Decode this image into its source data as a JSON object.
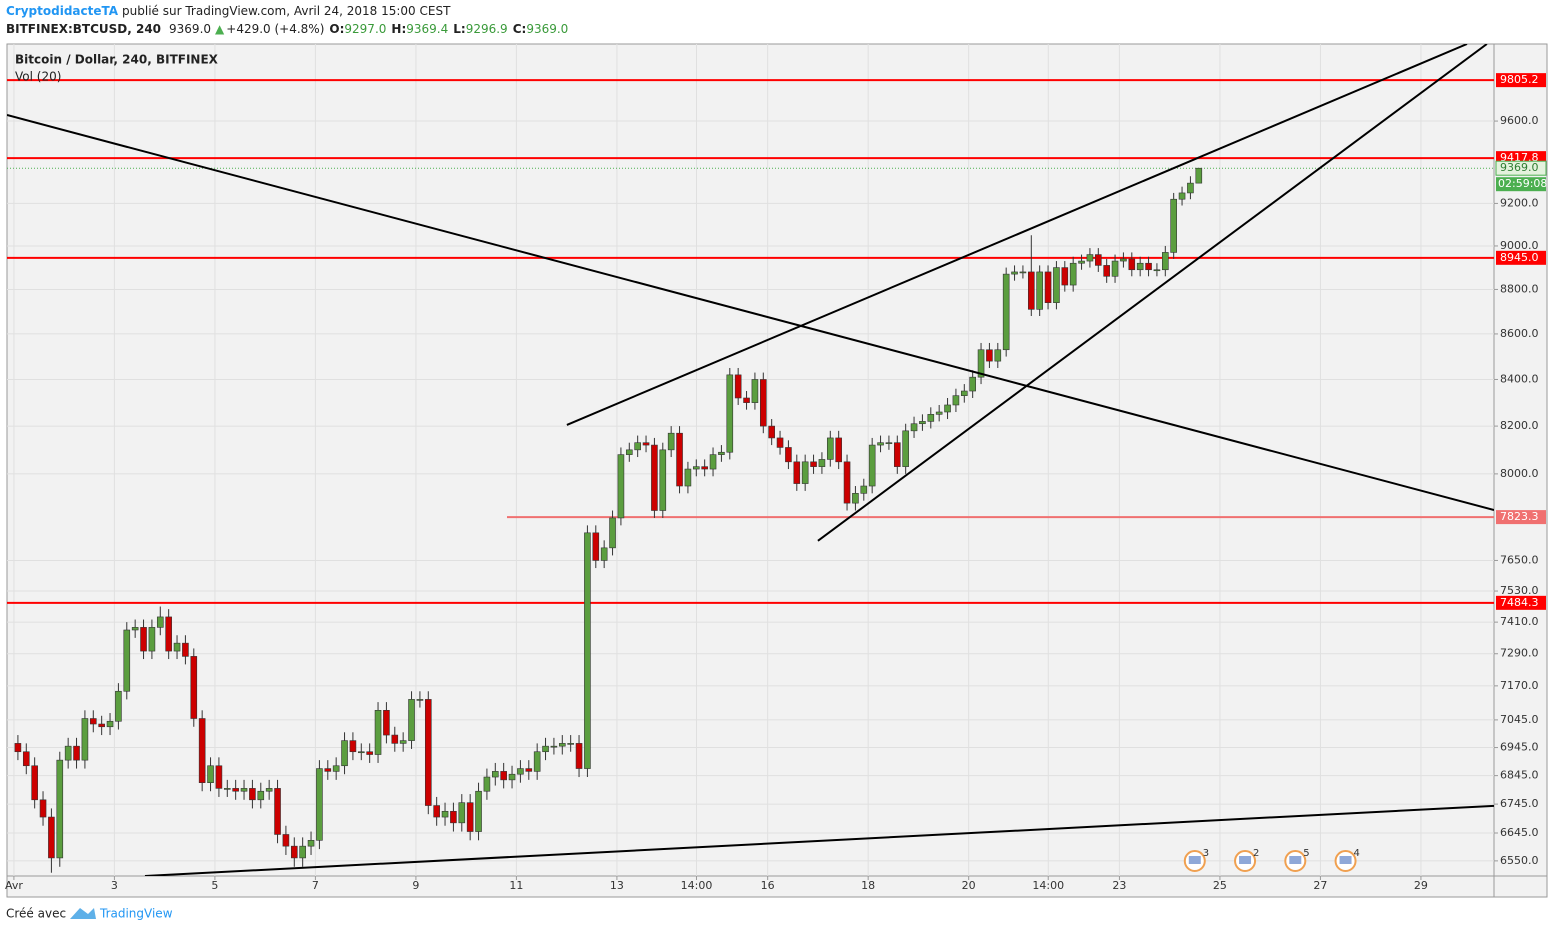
{
  "header": {
    "author": "CryptodidacteTA",
    "published": "publié sur TradingView.com, Avril 24, 2018 15:00 CEST",
    "symbol": "BITFINEX:BTCUSD, 240",
    "last": "9369.0",
    "change": "+429.0 (+4.8%)",
    "o_label": "O:",
    "o": "9297.0",
    "h_label": "H:",
    "h": "9369.4",
    "l_label": "L:",
    "l": "9296.9",
    "c_label": "C:",
    "c": "9369.0"
  },
  "footer": {
    "made_with": "Créé avec",
    "brand": "TradingView"
  },
  "chart_data": {
    "type": "candlestick",
    "title": "Bitcoin / Dollar, 240, BITFINEX",
    "subtitle": "Vol (20)",
    "log_scale": true,
    "grid": true,
    "up_color": "#5b9e3f",
    "down_color": "#cc0000",
    "xlim": [
      -3.3,
      706.9
    ],
    "ylim": [
      6499,
      9990
    ],
    "xticks": [
      {
        "value": 0,
        "label": "Avr"
      },
      {
        "value": 48,
        "label": "3"
      },
      {
        "value": 96,
        "label": "5"
      },
      {
        "value": 144,
        "label": "7"
      },
      {
        "value": 192,
        "label": "9"
      },
      {
        "value": 240,
        "label": "11"
      },
      {
        "value": 288,
        "label": "13"
      },
      {
        "value": 326,
        "label": "14:00"
      },
      {
        "value": 360,
        "label": "16"
      },
      {
        "value": 408,
        "label": "18"
      },
      {
        "value": 456,
        "label": "20"
      },
      {
        "value": 494,
        "label": "14:00"
      },
      {
        "value": 528,
        "label": "23"
      },
      {
        "value": 576,
        "label": "25"
      },
      {
        "value": 624,
        "label": "27"
      },
      {
        "value": 672,
        "label": "29"
      }
    ],
    "yticks": [
      {
        "value": 6550,
        "label": "6550.0"
      },
      {
        "value": 6645,
        "label": "6645.0"
      },
      {
        "value": 6745,
        "label": "6745.0"
      },
      {
        "value": 6845,
        "label": "6845.0"
      },
      {
        "value": 6945,
        "label": "6945.0"
      },
      {
        "value": 7045,
        "label": "7045.0"
      },
      {
        "value": 7170,
        "label": "7170.0"
      },
      {
        "value": 7290,
        "label": "7290.0"
      },
      {
        "value": 7410,
        "label": "7410.0"
      },
      {
        "value": 7530,
        "label": "7530.0"
      },
      {
        "value": 7650,
        "label": "7650.0"
      },
      {
        "value": 8000,
        "label": "8000.0"
      },
      {
        "value": 8200,
        "label": "8200.0"
      },
      {
        "value": 8400,
        "label": "8400.0"
      },
      {
        "value": 8600,
        "label": "8600.0"
      },
      {
        "value": 8800,
        "label": "8800.0"
      },
      {
        "value": 9000,
        "label": "9000.0"
      },
      {
        "value": 9200,
        "label": "9200.0"
      },
      {
        "value": 9600,
        "label": "9600.0"
      }
    ],
    "x": [
      0,
      4,
      8,
      12,
      16,
      20,
      24,
      28,
      32,
      36,
      40,
      44,
      48,
      52,
      56,
      60,
      64,
      68,
      72,
      76,
      80,
      84,
      88,
      92,
      96,
      100,
      104,
      108,
      112,
      116,
      120,
      124,
      128,
      132,
      136,
      140,
      144,
      148,
      152,
      156,
      160,
      164,
      168,
      172,
      176,
      180,
      184,
      188,
      192,
      196,
      200,
      204,
      208,
      212,
      216,
      220,
      224,
      228,
      232,
      236,
      240,
      244,
      248,
      252,
      256,
      260,
      264,
      268,
      272,
      276,
      280,
      284,
      288,
      292,
      296,
      300,
      304,
      308,
      312,
      316,
      320,
      324,
      328,
      332,
      336,
      340,
      344,
      348,
      352,
      356,
      360,
      364,
      368,
      372,
      376,
      380,
      384,
      388,
      392,
      396,
      400,
      404,
      408,
      412,
      416,
      420,
      424,
      428,
      432,
      436,
      440,
      444,
      448,
      452,
      456,
      460,
      464,
      468,
      472,
      476,
      480,
      484,
      488,
      492,
      496,
      500,
      504,
      508,
      512,
      516,
      520,
      524,
      528,
      532,
      536,
      540,
      544,
      548,
      552,
      556,
      560,
      564
    ],
    "open": [
      6960,
      6930,
      6880,
      6760,
      6700,
      6560,
      6900,
      6950,
      6900,
      7050,
      7030,
      7020,
      7040,
      7150,
      7380,
      7390,
      7300,
      7390,
      7430,
      7300,
      7330,
      7280,
      7050,
      6820,
      6880,
      6800,
      6800,
      6790,
      6800,
      6760,
      6790,
      6800,
      6640,
      6600,
      6560,
      6600,
      6620,
      6870,
      6860,
      6880,
      6970,
      6930,
      6930,
      6920,
      7080,
      6990,
      6960,
      6970,
      7120,
      7120,
      6740,
      6700,
      6720,
      6680,
      6750,
      6650,
      6790,
      6840,
      6860,
      6830,
      6850,
      6870,
      6860,
      6930,
      6950,
      6950,
      6960,
      6960,
      6870,
      7760,
      7650,
      7700,
      7820,
      8080,
      8100,
      8130,
      8120,
      7850,
      8100,
      8170,
      7950,
      8020,
      8030,
      8020,
      8080,
      8090,
      8420,
      8320,
      8300,
      8400,
      8200,
      8150,
      8110,
      8050,
      7960,
      8050,
      8030,
      8060,
      8150,
      8050,
      7880,
      7920,
      7950,
      8120,
      8130,
      8130,
      8030,
      8180,
      8210,
      8220,
      8250,
      8260,
      8290,
      8330,
      8350,
      8410,
      8530,
      8480,
      8530,
      8870,
      8880,
      8880,
      8710,
      8880,
      8740,
      8900,
      8820,
      8920,
      8930,
      8960,
      8910,
      8860,
      8930,
      8940,
      8890,
      8920,
      8890,
      8890,
      8970,
      9220,
      9250,
      9297
    ],
    "high": [
      6990,
      6960,
      6910,
      6790,
      6730,
      6930,
      6980,
      6980,
      7080,
      7080,
      7060,
      7070,
      7180,
      7410,
      7420,
      7420,
      7420,
      7470,
      7460,
      7360,
      7360,
      7310,
      7080,
      6910,
      6910,
      6830,
      6830,
      6830,
      6830,
      6820,
      6830,
      6830,
      6670,
      6630,
      6630,
      6650,
      6900,
      6900,
      6910,
      7000,
      7000,
      6960,
      6960,
      7110,
      7110,
      7020,
      7000,
      7150,
      7150,
      7150,
      6770,
      6750,
      6750,
      6780,
      6780,
      6820,
      6870,
      6890,
      6890,
      6880,
      6900,
      6900,
      6960,
      6980,
      6980,
      6990,
      6990,
      6990,
      7790,
      7790,
      7730,
      7850,
      8110,
      8130,
      8160,
      8160,
      8150,
      8130,
      8200,
      8200,
      8050,
      8060,
      8060,
      8110,
      8120,
      8450,
      8450,
      8350,
      8430,
      8430,
      8230,
      8180,
      8140,
      8080,
      8080,
      8080,
      8090,
      8180,
      8180,
      8080,
      7950,
      7980,
      8150,
      8160,
      8160,
      8160,
      8210,
      8240,
      8250,
      8280,
      8290,
      8320,
      8360,
      8380,
      8440,
      8560,
      8560,
      8560,
      8900,
      8910,
      8910,
      9050,
      8910,
      8910,
      8930,
      8930,
      8950,
      8960,
      8990,
      8990,
      8940,
      8960,
      8970,
      8970,
      8950,
      8950,
      8920,
      9000,
      9250,
      9280,
      9330,
      9369.4
    ],
    "low": [
      6900,
      6850,
      6730,
      6670,
      6510,
      6530,
      6870,
      6870,
      6870,
      7000,
      6990,
      6990,
      7010,
      7120,
      7350,
      7270,
      7270,
      7360,
      7270,
      7270,
      7250,
      7020,
      6790,
      6790,
      6770,
      6770,
      6760,
      6760,
      6730,
      6730,
      6760,
      6610,
      6570,
      6530,
      6530,
      6570,
      6590,
      6830,
      6830,
      6850,
      6900,
      6900,
      6890,
      6890,
      6960,
      6930,
      6930,
      6940,
      7090,
      6710,
      6670,
      6670,
      6650,
      6650,
      6620,
      6620,
      6760,
      6810,
      6800,
      6800,
      6820,
      6830,
      6830,
      6900,
      6920,
      6920,
      6930,
      6840,
      6840,
      7620,
      7620,
      7670,
      7790,
      8050,
      8070,
      8090,
      7820,
      7820,
      8070,
      7920,
      7920,
      7990,
      7990,
      7990,
      8050,
      8060,
      8290,
      8270,
      8270,
      8170,
      8120,
      8080,
      8020,
      7930,
      7930,
      8000,
      8000,
      8030,
      8020,
      7850,
      7850,
      7890,
      7920,
      8090,
      8100,
      8000,
      8000,
      8150,
      8180,
      8190,
      8220,
      8230,
      8260,
      8300,
      8320,
      8380,
      8450,
      8450,
      8500,
      8840,
      8850,
      8680,
      8680,
      8710,
      8710,
      8790,
      8790,
      8890,
      8900,
      8880,
      8830,
      8830,
      8900,
      8860,
      8860,
      8860,
      8860,
      8860,
      8940,
      9190,
      9220,
      9296.9
    ],
    "close": [
      6930,
      6880,
      6760,
      6700,
      6560,
      6900,
      6950,
      6900,
      7050,
      7030,
      7020,
      7040,
      7150,
      7380,
      7390,
      7300,
      7390,
      7430,
      7300,
      7330,
      7280,
      7050,
      6820,
      6880,
      6800,
      6800,
      6790,
      6800,
      6760,
      6790,
      6800,
      6640,
      6600,
      6560,
      6600,
      6620,
      6870,
      6860,
      6880,
      6970,
      6930,
      6930,
      6920,
      7080,
      6990,
      6960,
      6970,
      7120,
      7120,
      6740,
      6700,
      6720,
      6680,
      6750,
      6650,
      6790,
      6840,
      6860,
      6830,
      6850,
      6870,
      6860,
      6930,
      6950,
      6950,
      6960,
      6960,
      6870,
      7760,
      7650,
      7700,
      7820,
      8080,
      8100,
      8130,
      8120,
      7850,
      8100,
      8170,
      7950,
      8020,
      8030,
      8020,
      8080,
      8090,
      8420,
      8320,
      8300,
      8400,
      8200,
      8150,
      8110,
      8050,
      7960,
      8050,
      8030,
      8060,
      8150,
      8050,
      7880,
      7920,
      7950,
      8120,
      8130,
      8130,
      8030,
      8180,
      8210,
      8220,
      8250,
      8260,
      8290,
      8330,
      8350,
      8410,
      8530,
      8480,
      8530,
      8870,
      8880,
      8880,
      8710,
      8880,
      8740,
      8900,
      8820,
      8920,
      8930,
      8960,
      8910,
      8860,
      8930,
      8940,
      8890,
      8920,
      8890,
      8890,
      8970,
      9220,
      9250,
      9297,
      9369
    ],
    "levels": [
      {
        "value": 9805.2,
        "color": "#ff0000"
      },
      {
        "value": 9417.8,
        "color": "#ff0000"
      },
      {
        "value": 8945,
        "label": "8945.0",
        "color": "#ff0000"
      },
      {
        "value": 7823.3,
        "color": "#f07070",
        "x_start": 235.5
      },
      {
        "value": 7484.3,
        "color": "#ff0000"
      }
    ],
    "current_price": {
      "value": 9369,
      "label": "9369.0",
      "countdown": "02:59:08",
      "color": "#4caf50"
    },
    "trendlines": [
      {
        "x": [
          -3.3,
          706.9
        ],
        "y": [
          9630,
          7852
        ]
      },
      {
        "x": [
          264.1,
          694
        ],
        "y": [
          8205,
          9990
        ]
      },
      {
        "x": [
          384,
          703.5
        ],
        "y": [
          7728,
          9990
        ]
      },
      {
        "x": [
          62.6,
          706.9
        ],
        "y": [
          6499,
          6739
        ]
      }
    ],
    "events": [
      {
        "x": 564,
        "count": 3
      },
      {
        "x": 588,
        "count": 2
      },
      {
        "x": 612,
        "count": 5
      },
      {
        "x": 636,
        "count": 4
      }
    ]
  }
}
